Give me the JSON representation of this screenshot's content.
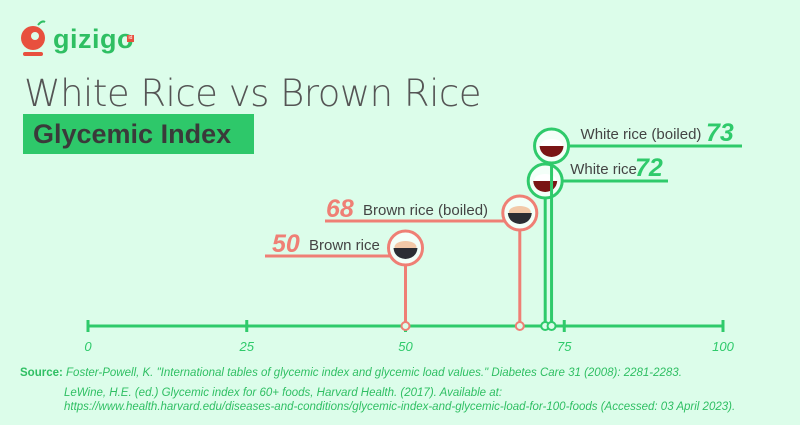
{
  "brand": {
    "name": "gizigo",
    "badge": "id"
  },
  "header": {
    "title": "White Rice vs Brown Rice",
    "subtitle": "Glycemic Index"
  },
  "colors": {
    "brown": "#ef7f75",
    "white": "#2fca6b",
    "axis": "#2fca6b",
    "background": "#dcfdea"
  },
  "chart_data": {
    "type": "lollipop",
    "xlim": [
      0,
      100
    ],
    "ticks": [
      "0",
      "25",
      "50",
      "75",
      "100"
    ],
    "tick_values": [
      0,
      25,
      50,
      75,
      100
    ],
    "points": [
      {
        "label": "Brown rice",
        "value": 50,
        "value_label": "50",
        "group": "brown",
        "label_side": "left"
      },
      {
        "label": "Brown rice (boiled)",
        "value": 68,
        "value_label": "68",
        "group": "brown",
        "label_side": "left"
      },
      {
        "label": "White rice",
        "value": 72,
        "value_label": "72",
        "group": "white",
        "label_side": "right"
      },
      {
        "label": "White rice (boiled)",
        "value": 73,
        "value_label": "73",
        "group": "white",
        "label_side": "right"
      }
    ]
  },
  "sources": {
    "label": "Source:",
    "line1": "Foster-Powell, K. \"International tables of glycemic index and glycemic load values.\" Diabetes Care 31 (2008): 2281-2283.",
    "line2": "LeWine, H.E. (ed.) Glycemic index for 60+ foods, Harvard Health. (2017). Available at:",
    "line3": "https://www.health.harvard.edu/diseases-and-conditions/glycemic-index-and-glycemic-load-for-100-foods (Accessed: 03 April 2023)."
  }
}
